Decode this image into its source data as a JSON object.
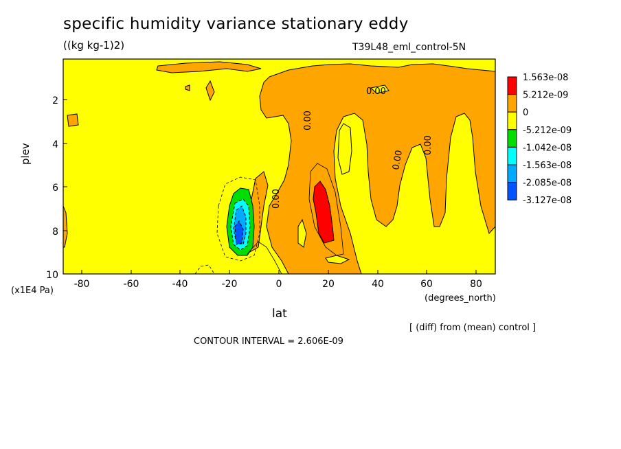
{
  "chart_data": {
    "type": "heatmap",
    "title": "specific humidity variance stationary eddy",
    "units": "((kg kg-1)2)",
    "run_label": "T39L48_eml_control-5N",
    "xlabel": "lat",
    "x_units": "(degrees_north)",
    "ylabel": "plev",
    "y_units": "(x1E4 Pa)",
    "x_ticks": [
      "-80",
      "-60",
      "-40",
      "-20",
      "0",
      "20",
      "40",
      "60",
      "80"
    ],
    "y_ticks": [
      "2",
      "4",
      "6",
      "8",
      "10"
    ],
    "xlim": [
      -87,
      87
    ],
    "ylim": [
      10,
      0.2
    ],
    "contour_labels": [
      "0.00",
      "0.00",
      "0.00",
      "0.00",
      "0.00",
      "0.00"
    ],
    "legend": [
      {
        "label": "1.563e-08",
        "color": "#ff0000"
      },
      {
        "label": "5.212e-09",
        "color": "#ffa500"
      },
      {
        "label": "0",
        "color": "#ffff00"
      },
      {
        "label": "-5.212e-09",
        "color": "#00dd00"
      },
      {
        "label": "-1.042e-08",
        "color": "#00ffff"
      },
      {
        "label": "-1.563e-08",
        "color": "#00aaff"
      },
      {
        "label": "-2.085e-08",
        "color": "#0055ff"
      },
      {
        "label": "-3.127e-08",
        "color": "#ffffff"
      }
    ],
    "note": "[ (diff) from (mean) control ]",
    "contour_interval": "CONTOUR INTERVAL = 2.606E-09"
  }
}
